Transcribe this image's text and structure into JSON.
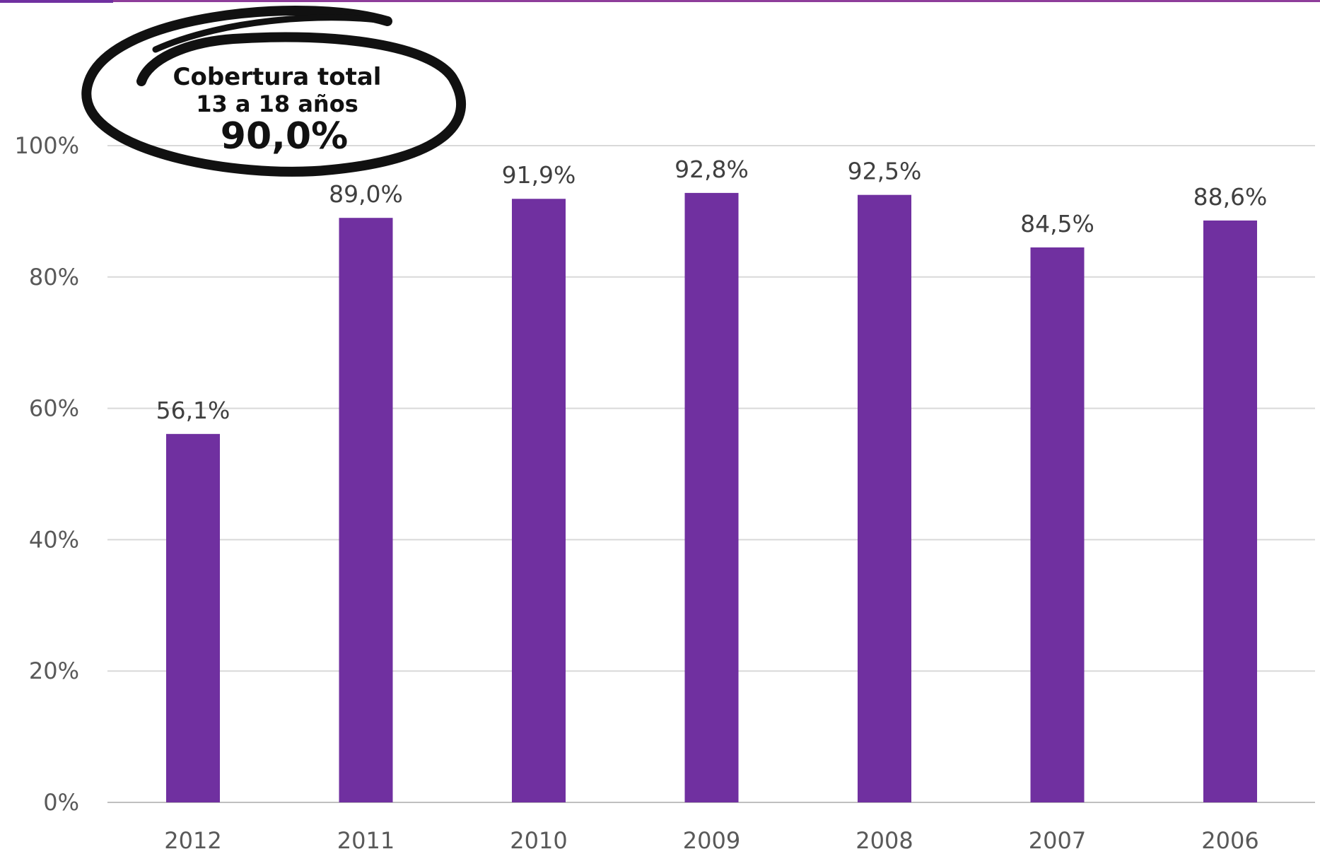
{
  "chart_data": {
    "type": "bar",
    "categories": [
      "2012",
      "2011",
      "2010",
      "2009",
      "2008",
      "2007",
      "2006"
    ],
    "values": [
      56.1,
      89.0,
      91.9,
      92.8,
      92.5,
      84.5,
      88.6
    ],
    "value_labels": [
      "56,1%",
      "89,0%",
      "91,9%",
      "92,8%",
      "92,5%",
      "84,5%",
      "88,6%"
    ],
    "ylim": [
      0,
      100
    ],
    "y_ticks": [
      0,
      20,
      40,
      60,
      80,
      100
    ],
    "y_tick_labels": [
      "0%",
      "20%",
      "40%",
      "60%",
      "80%",
      "100%"
    ],
    "grid": true,
    "legend": "none",
    "bar_color": "#7030A0",
    "annotation": {
      "line1": "Cobertura total",
      "line2": "13 a 18 años",
      "value": "90,0%"
    }
  },
  "colors": {
    "bar": "#7030A0",
    "top_rule": "#8E3D9A",
    "grid": "#D9D9D9",
    "axis_text": "#595959"
  }
}
